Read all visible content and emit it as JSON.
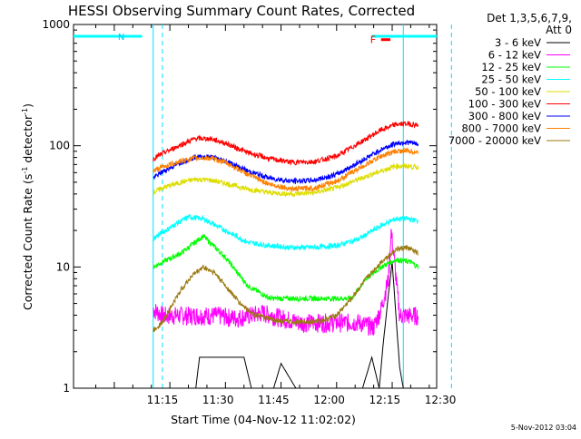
{
  "chart_data": {
    "type": "line",
    "title": "HESSI Observing Summary Count Rates, Corrected",
    "xlabel": "Start Time (04-Nov-12 11:02:02)",
    "ylabel_main": "Corrected Count Rate (s",
    "ylabel_sup1": "-1",
    "ylabel_mid": " detector",
    "ylabel_sup2": "-1",
    "ylabel_end": ")",
    "y_scale": "log",
    "ylim": [
      1,
      1000
    ],
    "xlim_minutes": [
      62,
      100
    ],
    "x_axis_start": "11:02:02",
    "x_ticks": [
      {
        "label": "11:15",
        "min": 13
      },
      {
        "label": "11:30",
        "min": 28
      },
      {
        "label": "11:45",
        "min": 43
      },
      {
        "label": "12:00",
        "min": 58
      },
      {
        "label": "12:15",
        "min": 73
      },
      {
        "label": "12:30",
        "min": 88
      }
    ],
    "y_ticks": [
      {
        "label": "1",
        "value": 1
      },
      {
        "label": "10",
        "value": 10
      },
      {
        "label": "100",
        "value": 100
      },
      {
        "label": "1000",
        "value": 1000
      }
    ],
    "legend": {
      "header1": "Det 1,3,5,6,7,9,",
      "header2": "Att 0",
      "placement": "right"
    },
    "series": [
      {
        "name": "3 - 6 keV",
        "color": "#000000",
        "values": [
          [
            10.5,
            1.0
          ],
          [
            13.0,
            1.0
          ],
          [
            22.0,
            1.0
          ],
          [
            23.0,
            1.8
          ],
          [
            28.0,
            1.8
          ],
          [
            35.0,
            1.8
          ],
          [
            37.0,
            1.0
          ],
          [
            43.0,
            1.0
          ],
          [
            45.0,
            1.6
          ],
          [
            49.0,
            1.0
          ],
          [
            67.0,
            1.0
          ],
          [
            69.5,
            1.8
          ],
          [
            71.5,
            1.0
          ],
          [
            72.5,
            2.2
          ],
          [
            74.0,
            6.0
          ],
          [
            75.0,
            11.0
          ],
          [
            76.0,
            4.0
          ],
          [
            77.0,
            1.5
          ],
          [
            78.0,
            1.0
          ]
        ]
      },
      {
        "name": "6 - 12 keV",
        "color": "#ff00ff",
        "values": [
          [
            10.5,
            4.5
          ],
          [
            13.0,
            4.0
          ],
          [
            20.0,
            4.0
          ],
          [
            28.0,
            4.0
          ],
          [
            33.0,
            3.8
          ],
          [
            40.0,
            4.2
          ],
          [
            50.0,
            3.5
          ],
          [
            60.0,
            3.5
          ],
          [
            66.0,
            3.5
          ],
          [
            70.0,
            3.2
          ],
          [
            72.0,
            4.5
          ],
          [
            74.0,
            8.0
          ],
          [
            74.7,
            20.0
          ],
          [
            75.5,
            12.0
          ],
          [
            77.0,
            4.0
          ],
          [
            82.0,
            4.0
          ]
        ]
      },
      {
        "name": "12 - 25 keV",
        "color": "#00ff00",
        "values": [
          [
            10.5,
            10.0
          ],
          [
            13.0,
            11.0
          ],
          [
            18.0,
            13.0
          ],
          [
            24.0,
            18.0
          ],
          [
            30.0,
            12.0
          ],
          [
            36.0,
            7.0
          ],
          [
            42.0,
            5.5
          ],
          [
            50.0,
            5.5
          ],
          [
            58.0,
            5.5
          ],
          [
            64.0,
            5.5
          ],
          [
            68.0,
            8.0
          ],
          [
            72.0,
            10.0
          ],
          [
            76.0,
            11.5
          ],
          [
            80.0,
            11.0
          ],
          [
            82.0,
            10.0
          ]
        ]
      },
      {
        "name": "25 - 50 keV",
        "color": "#00ffff",
        "values": [
          [
            10.5,
            17.0
          ],
          [
            12.0,
            18.5
          ],
          [
            16.0,
            22.0
          ],
          [
            20.0,
            26.0
          ],
          [
            24.0,
            25.0
          ],
          [
            30.0,
            20.0
          ],
          [
            36.0,
            16.0
          ],
          [
            42.0,
            15.0
          ],
          [
            48.0,
            14.5
          ],
          [
            54.0,
            14.5
          ],
          [
            60.0,
            15.0
          ],
          [
            66.0,
            17.0
          ],
          [
            72.0,
            22.0
          ],
          [
            76.0,
            25.0
          ],
          [
            79.0,
            25.0
          ],
          [
            82.0,
            24.0
          ]
        ]
      },
      {
        "name": "50 - 100 keV",
        "color": "#dddd00",
        "values": [
          [
            10.5,
            41.0
          ],
          [
            13.0,
            45.0
          ],
          [
            18.0,
            50.0
          ],
          [
            22.0,
            53.0
          ],
          [
            26.0,
            52.0
          ],
          [
            30.0,
            49.0
          ],
          [
            36.0,
            44.0
          ],
          [
            42.0,
            41.0
          ],
          [
            48.0,
            40.0
          ],
          [
            54.0,
            41.0
          ],
          [
            60.0,
            45.0
          ],
          [
            66.0,
            53.0
          ],
          [
            72.0,
            62.0
          ],
          [
            76.0,
            68.0
          ],
          [
            79.0,
            68.0
          ],
          [
            82.0,
            66.0
          ]
        ]
      },
      {
        "name": "100 - 300 keV",
        "color": "#ff0000",
        "values": [
          [
            10.5,
            78.0
          ],
          [
            13.0,
            86.0
          ],
          [
            18.0,
            102.0
          ],
          [
            22.0,
            115.0
          ],
          [
            26.0,
            114.0
          ],
          [
            30.0,
            105.0
          ],
          [
            36.0,
            88.0
          ],
          [
            42.0,
            78.0
          ],
          [
            48.0,
            73.0
          ],
          [
            54.0,
            74.0
          ],
          [
            60.0,
            82.0
          ],
          [
            66.0,
            105.0
          ],
          [
            72.0,
            135.0
          ],
          [
            76.0,
            150.0
          ],
          [
            79.0,
            152.0
          ],
          [
            82.0,
            148.0
          ]
        ]
      },
      {
        "name": "300 - 800 keV",
        "color": "#0000ff",
        "values": [
          [
            10.5,
            54.0
          ],
          [
            13.0,
            61.0
          ],
          [
            18.0,
            73.0
          ],
          [
            22.0,
            81.0
          ],
          [
            26.0,
            81.0
          ],
          [
            30.0,
            75.0
          ],
          [
            36.0,
            62.0
          ],
          [
            42.0,
            54.0
          ],
          [
            48.0,
            51.0
          ],
          [
            54.0,
            52.0
          ],
          [
            60.0,
            58.0
          ],
          [
            66.0,
            73.0
          ],
          [
            72.0,
            93.0
          ],
          [
            76.0,
            105.0
          ],
          [
            79.0,
            107.0
          ],
          [
            82.0,
            103.0
          ]
        ]
      },
      {
        "name": "800 - 7000 keV",
        "color": "#ff8000",
        "values": [
          [
            10.5,
            62.0
          ],
          [
            13.0,
            67.0
          ],
          [
            18.0,
            75.0
          ],
          [
            22.0,
            79.0
          ],
          [
            26.0,
            79.0
          ],
          [
            30.0,
            73.0
          ],
          [
            36.0,
            58.0
          ],
          [
            42.0,
            48.0
          ],
          [
            48.0,
            44.0
          ],
          [
            54.0,
            45.0
          ],
          [
            60.0,
            51.0
          ],
          [
            66.0,
            65.0
          ],
          [
            72.0,
            82.0
          ],
          [
            76.0,
            90.0
          ],
          [
            79.0,
            91.0
          ],
          [
            82.0,
            88.0
          ]
        ]
      },
      {
        "name": "7000 - 20000 keV",
        "color": "#9a7a10",
        "values": [
          [
            10.5,
            3.0
          ],
          [
            13.0,
            3.5
          ],
          [
            15.0,
            4.5
          ],
          [
            18.0,
            6.5
          ],
          [
            21.0,
            8.5
          ],
          [
            24.0,
            10.0
          ],
          [
            27.0,
            9.0
          ],
          [
            30.0,
            7.0
          ],
          [
            34.0,
            5.0
          ],
          [
            38.0,
            4.0
          ],
          [
            44.0,
            3.6
          ],
          [
            50.0,
            3.5
          ],
          [
            56.0,
            3.6
          ],
          [
            60.0,
            4.0
          ],
          [
            64.0,
            5.5
          ],
          [
            68.0,
            8.0
          ],
          [
            72.0,
            11.0
          ],
          [
            76.0,
            14.0
          ],
          [
            79.0,
            14.5
          ],
          [
            82.0,
            13.0
          ]
        ]
      }
    ],
    "annotations": {
      "flare_flag_label": "F",
      "night_flag_label": "N",
      "saa_flag_value": 800
    },
    "attenuator_bars": [
      {
        "x0": 2.0,
        "x1": 12.5,
        "y": 800
      },
      {
        "x0": 82.5,
        "x1": 92.0,
        "y": 800
      }
    ],
    "flare_bar": {
      "x0": 72.0,
      "x1": 74.5,
      "y": 750
    },
    "vertical_markers": [
      {
        "min": 10.5,
        "style": "solid"
      },
      {
        "min": 13.0,
        "style": "dashed"
      },
      {
        "min": 78.0,
        "style": "solid"
      },
      {
        "min": 91.0,
        "style": "dashed"
      }
    ],
    "footer": "5-Nov-2012 03:04"
  }
}
